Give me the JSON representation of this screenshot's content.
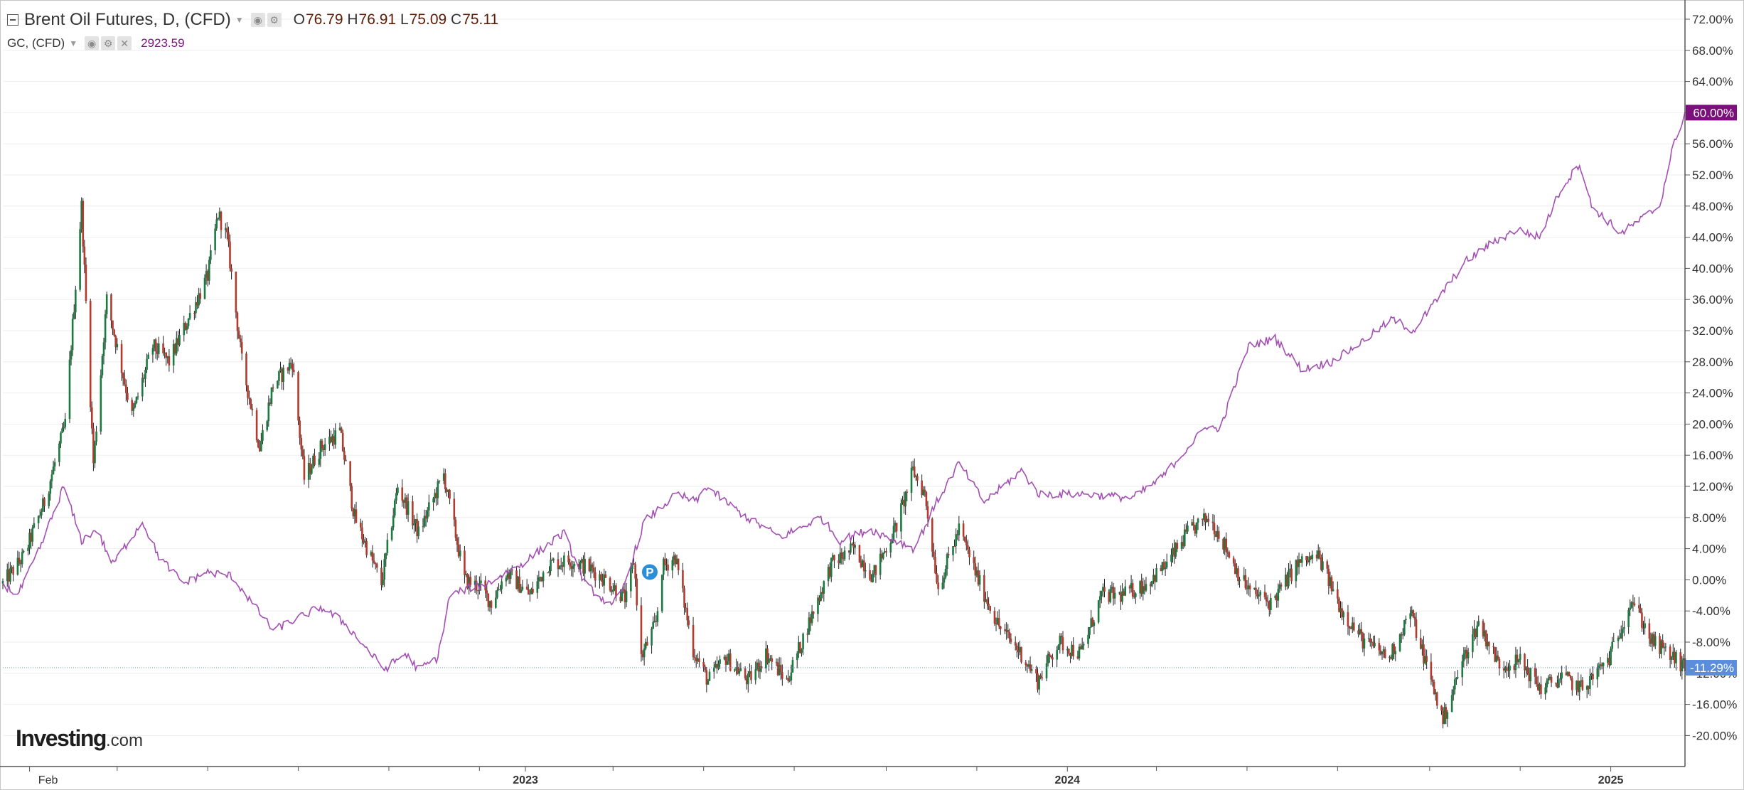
{
  "header": {
    "main_title": "Brent Oil Futures, D, (CFD)",
    "ohlc": [
      {
        "key": "O",
        "value": "76.79"
      },
      {
        "key": "H",
        "value": "76.91"
      },
      {
        "key": "L",
        "value": "75.09"
      },
      {
        "key": "C",
        "value": "75.11"
      }
    ],
    "sub_title": "GC, (CFD)",
    "sub_value": "2923.59"
  },
  "logo": {
    "brand": "Investing",
    "suffix": ".com"
  },
  "colors": {
    "up": "#1b7a3f",
    "down": "#b23a2e",
    "gold_line": "#a34fb3",
    "gold_flag": "#7b0f7b",
    "price_flag": "#5b8ddd",
    "grid": "#eeeeee"
  },
  "chart_data": {
    "type": "line",
    "title": "Brent Oil Futures, D, (CFD) vs GC, (CFD)",
    "y_unit": "% change",
    "ylim": [
      -21.5,
      73.2
    ],
    "y_ticks": [
      "72.00%",
      "68.00%",
      "64.00%",
      "60.00%",
      "56.00%",
      "52.00%",
      "48.00%",
      "44.00%",
      "40.00%",
      "36.00%",
      "32.00%",
      "28.00%",
      "24.00%",
      "20.00%",
      "16.00%",
      "12.00%",
      "8.00%",
      "4.00%",
      "0.00%",
      "-4.00%",
      "-8.00%",
      "-12.00%",
      "-16.00%",
      "-20.00%"
    ],
    "x_range": [
      "2022-01-14",
      "2025-02-20"
    ],
    "x_tick_labels": [
      {
        "date": "2022-02-01",
        "label": "Feb",
        "bold": false
      },
      {
        "date": "2023-01-01",
        "label": "2023",
        "bold": true
      },
      {
        "date": "2024-01-01",
        "label": "2024",
        "bold": true
      },
      {
        "date": "2025-01-01",
        "label": "2025",
        "bold": true
      }
    ],
    "minor_ticks": [
      "2022-04-01",
      "2022-06-01",
      "2022-08-01",
      "2022-10-01",
      "2022-12-01",
      "2023-03-01",
      "2023-05-01",
      "2023-07-01",
      "2023-09-01",
      "2023-11-01",
      "2024-03-01",
      "2024-05-01",
      "2024-07-01",
      "2024-09-01",
      "2024-11-01"
    ],
    "last_values": {
      "brent": "-11.29%",
      "gold": "60.00%"
    },
    "series": [
      {
        "name": "Brent Oil Futures, D, (CFD)",
        "style": "candlestick",
        "x": [
          "2022-01-14",
          "2022-01-28",
          "2022-02-11",
          "2022-02-25",
          "2022-03-08",
          "2022-03-16",
          "2022-03-25",
          "2022-04-11",
          "2022-04-25",
          "2022-05-06",
          "2022-05-20",
          "2022-06-01",
          "2022-06-08",
          "2022-06-14",
          "2022-06-24",
          "2022-07-06",
          "2022-07-15",
          "2022-07-28",
          "2022-08-05",
          "2022-08-16",
          "2022-08-29",
          "2022-09-08",
          "2022-09-26",
          "2022-10-07",
          "2022-10-21",
          "2022-11-07",
          "2022-11-21",
          "2022-12-02",
          "2022-12-09",
          "2022-12-19",
          "2023-01-04",
          "2023-01-16",
          "2023-01-31",
          "2023-02-13",
          "2023-02-24",
          "2023-03-10",
          "2023-03-15",
          "2023-03-20",
          "2023-03-30",
          "2023-04-03",
          "2023-04-12",
          "2023-04-24",
          "2023-05-04",
          "2023-05-16",
          "2023-05-31",
          "2023-06-12",
          "2023-06-26",
          "2023-07-12",
          "2023-07-26",
          "2023-08-10",
          "2023-08-23",
          "2023-09-08",
          "2023-09-19",
          "2023-09-27",
          "2023-10-06",
          "2023-10-20",
          "2023-11-03",
          "2023-11-16",
          "2023-12-01",
          "2023-12-12",
          "2023-12-26",
          "2024-01-10",
          "2024-01-24",
          "2024-02-07",
          "2024-02-23",
          "2024-03-08",
          "2024-03-22",
          "2024-04-05",
          "2024-04-12",
          "2024-04-26",
          "2024-05-03",
          "2024-05-17",
          "2024-06-04",
          "2024-06-18",
          "2024-07-04",
          "2024-07-19",
          "2024-08-05",
          "2024-08-19",
          "2024-09-10",
          "2024-09-24",
          "2024-10-04",
          "2024-10-18",
          "2024-11-01",
          "2024-11-15",
          "2024-11-29",
          "2024-12-13",
          "2024-12-31",
          "2025-01-15",
          "2025-01-29",
          "2025-02-12",
          "2025-02-20"
        ],
        "values": [
          -0.5,
          3.0,
          10.0,
          20.0,
          48.0,
          15.0,
          36.0,
          21.0,
          30.0,
          28.0,
          34.0,
          39.0,
          47.0,
          44.0,
          28.0,
          17.0,
          25.0,
          28.0,
          13.0,
          17.0,
          19.0,
          8.0,
          -0.5,
          12.0,
          6.0,
          13.5,
          0.0,
          -1.0,
          -3.0,
          1.0,
          -2.0,
          2.0,
          2.5,
          1.5,
          0.0,
          -2.5,
          2.5,
          -10.0,
          -5.5,
          1.5,
          3.0,
          -9.0,
          -13.0,
          -10.0,
          -13.0,
          -9.5,
          -13.0,
          -5.0,
          2.0,
          4.0,
          0.5,
          7.0,
          14.0,
          11.0,
          -1.0,
          6.5,
          -0.5,
          -6.0,
          -9.5,
          -13.0,
          -8.0,
          -9.5,
          -2.0,
          -2.0,
          -0.5,
          2.0,
          6.0,
          8.0,
          6.0,
          0.5,
          -1.5,
          -3.0,
          2.0,
          3.0,
          -4.0,
          -8.0,
          -10.0,
          -4.0,
          -18.0,
          -10.0,
          -5.5,
          -11.0,
          -10.5,
          -14.0,
          -12.5,
          -14.0,
          -10.0,
          -2.5,
          -8.0,
          -10.0,
          -11.3
        ]
      },
      {
        "name": "GC, (CFD)",
        "style": "line",
        "x": [
          "2022-01-14",
          "2022-01-24",
          "2022-02-08",
          "2022-02-24",
          "2022-03-08",
          "2022-03-18",
          "2022-03-29",
          "2022-04-18",
          "2022-04-29",
          "2022-05-16",
          "2022-05-31",
          "2022-06-17",
          "2022-07-15",
          "2022-08-16",
          "2022-09-01",
          "2022-09-28",
          "2022-10-12",
          "2022-10-21",
          "2022-11-03",
          "2022-11-11",
          "2022-11-25",
          "2022-12-06",
          "2022-12-29",
          "2023-01-27",
          "2023-02-10",
          "2023-02-28",
          "2023-03-08",
          "2023-03-22",
          "2023-04-13",
          "2023-04-26",
          "2023-05-03",
          "2023-05-16",
          "2023-05-30",
          "2023-06-22",
          "2023-07-19",
          "2023-08-01",
          "2023-08-21",
          "2023-09-20",
          "2023-10-05",
          "2023-10-20",
          "2023-11-06",
          "2023-12-01",
          "2023-12-13",
          "2024-01-12",
          "2024-02-14",
          "2024-03-04",
          "2024-04-05",
          "2024-04-12",
          "2024-05-02",
          "2024-05-20",
          "2024-06-07",
          "2024-06-27",
          "2024-07-17",
          "2024-08-07",
          "2024-08-21",
          "2024-09-10",
          "2024-09-26",
          "2024-10-11",
          "2024-10-30",
          "2024-11-14",
          "2024-11-28",
          "2024-12-11",
          "2024-12-19",
          "2025-01-08",
          "2025-02-03",
          "2025-02-11",
          "2025-02-20"
        ],
        "values": [
          -0.5,
          -2.0,
          4.0,
          12.0,
          5.0,
          6.5,
          2.0,
          7.5,
          3.0,
          -0.5,
          1.0,
          0.5,
          -6.5,
          -3.5,
          -5.5,
          -11.5,
          -9.5,
          -11.5,
          -10.0,
          -2.0,
          -1.0,
          -0.5,
          2.0,
          6.0,
          -0.5,
          -3.5,
          -1.0,
          7.5,
          11.0,
          10.0,
          12.0,
          10.0,
          8.0,
          5.5,
          8.0,
          5.0,
          6.5,
          4.0,
          10.0,
          15.0,
          10.0,
          14.0,
          11.0,
          11.0,
          10.5,
          13.0,
          20.0,
          19.0,
          30.0,
          31.0,
          27.0,
          28.0,
          30.5,
          33.5,
          32.0,
          37.0,
          41.0,
          43.0,
          45.0,
          44.0,
          50.0,
          53.5,
          48.0,
          44.5,
          48.0,
          55.0,
          60.0
        ]
      }
    ]
  }
}
